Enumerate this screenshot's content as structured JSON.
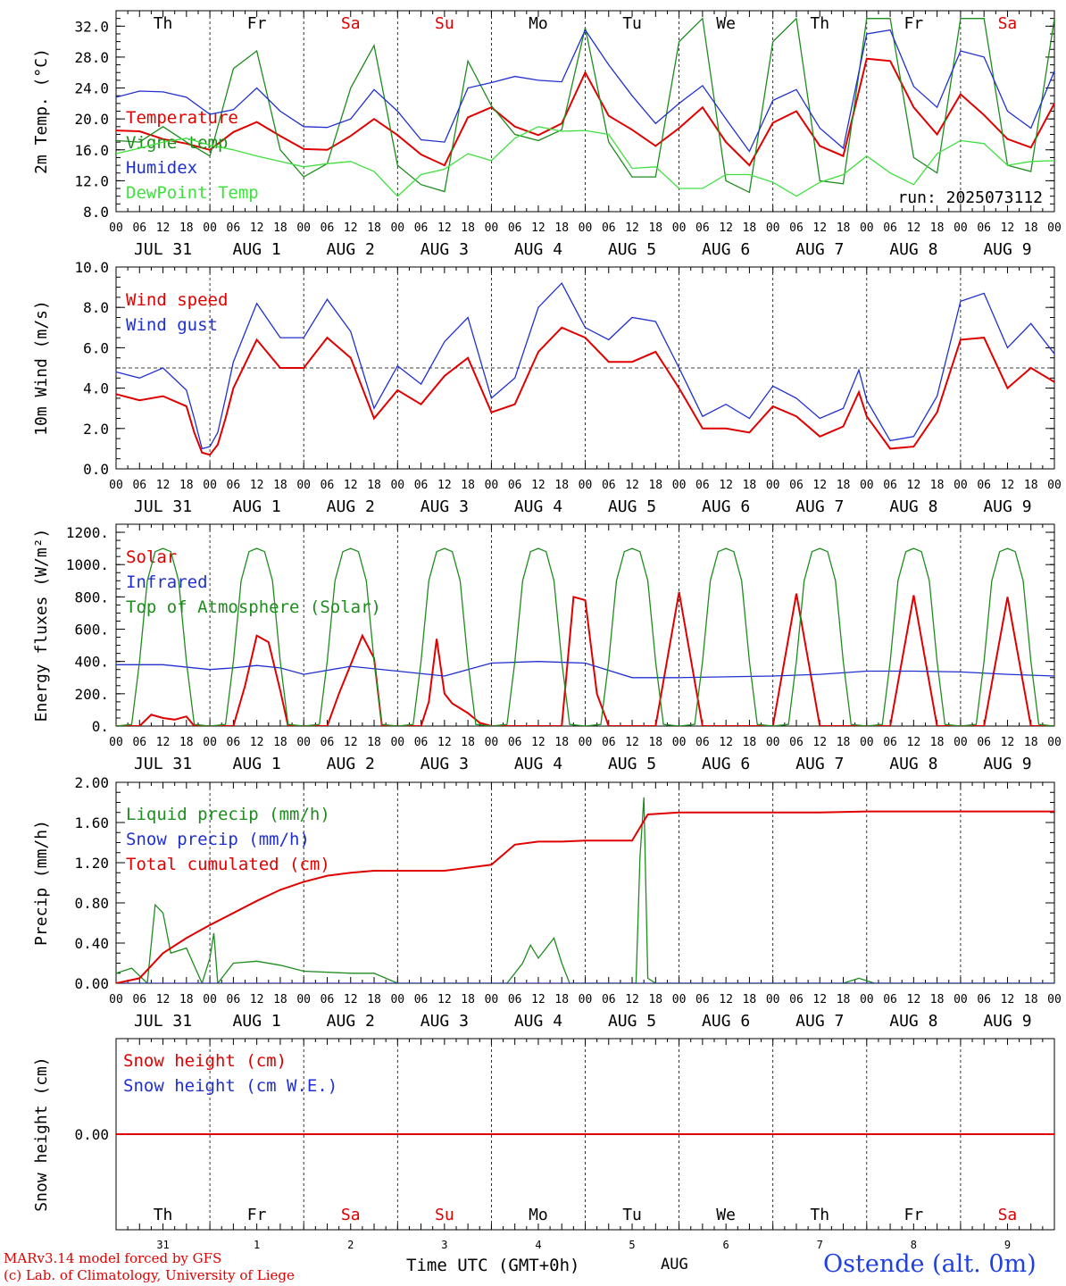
{
  "footer": {
    "credit_line1": "MARv3.14 model forced by GFS",
    "credit_line2": "(c) Lab. of Climatology, University of Liege",
    "x_title": "Time UTC (GMT+0h)",
    "month_label": "AUG",
    "station": "Ostende (alt. 0m)"
  },
  "colors": {
    "red": "#e00000",
    "green": "#1e8c1e",
    "blue": "#2030d0",
    "lightgreen": "#40e040",
    "weekend": "#e00000"
  },
  "days": {
    "weekdays": [
      "Th",
      "Fr",
      "Sa",
      "Su",
      "Mo",
      "Tu",
      "We",
      "Th",
      "Fr",
      "Sa"
    ],
    "weekend": [
      false,
      false,
      true,
      true,
      false,
      false,
      false,
      false,
      false,
      true
    ],
    "date_labels": [
      "JUL 31",
      "AUG  1",
      "AUG  2",
      "AUG  3",
      "AUG  4",
      "AUG  5",
      "AUG  6",
      "AUG  7",
      "AUG  8",
      "AUG  9"
    ],
    "day_numbers": [
      "31",
      "1",
      "2",
      "3",
      "4",
      "5",
      "6",
      "7",
      "8",
      "9"
    ],
    "hour_ticks": [
      "00",
      "06",
      "12",
      "18"
    ],
    "final_hour": "00"
  },
  "chart_data": [
    {
      "type": "line",
      "ylabel": "2m Temp. (°C)",
      "ylim": [
        8,
        34
      ],
      "yticks": [
        "8.0",
        "12.0",
        "16.0",
        "20.0",
        "24.0",
        "28.0",
        "32.0"
      ],
      "xlim_hours": [
        0,
        240
      ],
      "annotation": "run: 2025073112",
      "series": [
        {
          "name": "Temperature",
          "color": "red",
          "x": [
            0,
            6,
            12,
            18,
            24,
            30,
            36,
            42,
            48,
            54,
            60,
            66,
            72,
            78,
            84,
            90,
            96,
            102,
            108,
            114,
            120,
            126,
            132,
            138,
            144,
            150,
            156,
            162,
            168,
            174,
            180,
            186,
            192,
            198,
            204,
            210,
            216,
            222,
            228,
            234,
            240
          ],
          "y": [
            18.5,
            18.4,
            17.4,
            16.8,
            16.0,
            18.3,
            19.6,
            17.8,
            16.1,
            16.0,
            17.8,
            20.0,
            17.9,
            15.4,
            14.0,
            20.2,
            21.5,
            19.0,
            17.9,
            19.4,
            26.0,
            20.4,
            18.6,
            16.5,
            18.8,
            21.5,
            17.0,
            14.0,
            19.5,
            21.0,
            16.5,
            15.2,
            27.8,
            27.5,
            21.5,
            18.0,
            23.2,
            20.5,
            17.4,
            16.3,
            22.0
          ]
        },
        {
          "name": "Vigne temp",
          "color": "green",
          "x": [
            0,
            6,
            12,
            18,
            24,
            30,
            36,
            42,
            48,
            54,
            60,
            66,
            72,
            78,
            84,
            90,
            96,
            102,
            108,
            114,
            120,
            126,
            132,
            138,
            144,
            150,
            156,
            162,
            168,
            174,
            180,
            186,
            192,
            198,
            204,
            210,
            216,
            222,
            228,
            234,
            240
          ],
          "y": [
            17.2,
            17.0,
            19.0,
            17.0,
            15.2,
            26.5,
            28.8,
            16.0,
            12.5,
            14.2,
            24.0,
            29.5,
            14.0,
            11.5,
            10.6,
            27.5,
            21.7,
            18.0,
            17.2,
            18.6,
            31.8,
            17.0,
            12.5,
            12.5,
            30.0,
            33.0,
            12.0,
            10.5,
            30.0,
            33.0,
            12.0,
            11.6,
            33.0,
            33.0,
            15.0,
            13.0,
            33.0,
            33.0,
            14.0,
            13.2,
            33.0
          ]
        },
        {
          "name": "Humidex",
          "color": "blue",
          "x": [
            0,
            6,
            12,
            18,
            24,
            30,
            36,
            42,
            48,
            54,
            60,
            66,
            72,
            78,
            84,
            90,
            96,
            102,
            108,
            114,
            120,
            126,
            132,
            138,
            144,
            150,
            156,
            162,
            168,
            174,
            180,
            186,
            192,
            198,
            204,
            210,
            216,
            222,
            228,
            234,
            240
          ],
          "y": [
            22.8,
            23.6,
            23.5,
            22.8,
            20.6,
            21.2,
            24.0,
            21.0,
            19.0,
            18.9,
            20.0,
            23.8,
            21.0,
            17.3,
            17.0,
            24.0,
            24.7,
            25.5,
            25.0,
            24.8,
            31.5,
            27.0,
            23.0,
            19.4,
            22.0,
            24.3,
            20.0,
            15.8,
            22.4,
            23.8,
            18.8,
            16.2,
            31.0,
            31.5,
            24.2,
            21.5,
            28.8,
            28.0,
            21.0,
            18.8,
            26.2
          ]
        },
        {
          "name": "DewPoint Temp",
          "color": "lightgreen",
          "x": [
            0,
            6,
            12,
            18,
            24,
            30,
            36,
            42,
            48,
            54,
            60,
            66,
            72,
            78,
            84,
            90,
            96,
            102,
            108,
            114,
            120,
            126,
            132,
            138,
            144,
            150,
            156,
            162,
            168,
            174,
            180,
            186,
            192,
            198,
            204,
            210,
            216,
            222,
            228,
            234,
            240
          ],
          "y": [
            15.5,
            16.2,
            17.0,
            17.5,
            16.6,
            16.0,
            15.2,
            14.5,
            13.8,
            14.2,
            14.5,
            13.2,
            10.0,
            12.8,
            13.5,
            15.5,
            14.6,
            17.5,
            19.0,
            18.4,
            18.5,
            18.0,
            13.6,
            13.8,
            11.0,
            11.0,
            12.8,
            12.8,
            11.8,
            10.0,
            11.8,
            12.8,
            15.2,
            13.0,
            11.5,
            15.5,
            17.2,
            16.8,
            14.0,
            14.5,
            14.6
          ]
        }
      ]
    },
    {
      "type": "line",
      "ylabel": "10m Wind (m/s)",
      "ylim": [
        0,
        10
      ],
      "yticks": [
        "0.0",
        "2.0",
        "4.0",
        "6.0",
        "8.0",
        "10.0"
      ],
      "reference_line": 5.0,
      "series": [
        {
          "name": "Wind speed",
          "color": "red",
          "x": [
            0,
            6,
            12,
            18,
            20,
            22,
            24,
            26,
            28,
            30,
            36,
            42,
            48,
            54,
            60,
            66,
            72,
            78,
            84,
            90,
            96,
            102,
            108,
            114,
            120,
            126,
            132,
            138,
            144,
            150,
            156,
            162,
            168,
            174,
            180,
            186,
            190,
            192,
            198,
            204,
            210,
            216,
            222,
            228,
            234,
            240
          ],
          "y": [
            3.7,
            3.4,
            3.6,
            3.1,
            1.8,
            0.8,
            0.7,
            1.2,
            2.5,
            4.0,
            6.4,
            5.0,
            5.0,
            6.5,
            5.5,
            2.5,
            3.9,
            3.2,
            4.6,
            5.5,
            2.8,
            3.2,
            5.8,
            7.0,
            6.5,
            5.3,
            5.3,
            5.8,
            4.0,
            2.0,
            2.0,
            1.8,
            3.1,
            2.6,
            1.6,
            2.1,
            3.8,
            2.6,
            1.0,
            1.1,
            2.8,
            6.4,
            6.5,
            4.0,
            5.0,
            4.3
          ]
        },
        {
          "name": "Wind gust",
          "color": "blue",
          "x": [
            0,
            6,
            12,
            18,
            20,
            22,
            24,
            26,
            28,
            30,
            36,
            42,
            48,
            54,
            60,
            66,
            72,
            78,
            84,
            90,
            96,
            102,
            108,
            114,
            120,
            126,
            132,
            138,
            144,
            150,
            156,
            162,
            168,
            174,
            180,
            186,
            190,
            192,
            198,
            204,
            210,
            216,
            222,
            228,
            234,
            240
          ],
          "y": [
            4.8,
            4.5,
            5.0,
            3.9,
            2.5,
            1.0,
            1.1,
            1.8,
            3.5,
            5.3,
            8.2,
            6.5,
            6.5,
            8.4,
            6.8,
            3.0,
            5.1,
            4.2,
            6.3,
            7.5,
            3.5,
            4.5,
            8.0,
            9.2,
            7.0,
            6.4,
            7.5,
            7.3,
            5.0,
            2.6,
            3.2,
            2.5,
            4.1,
            3.5,
            2.5,
            3.0,
            4.9,
            3.4,
            1.4,
            1.6,
            3.6,
            8.3,
            8.7,
            6.0,
            7.2,
            5.7
          ]
        }
      ]
    },
    {
      "type": "line",
      "ylabel": "Energy fluxes (W/m²)",
      "ylim": [
        0,
        1250
      ],
      "yticks": [
        "0.",
        "200.",
        "400.",
        "600.",
        "800.",
        "1000.",
        "1200."
      ],
      "series": [
        {
          "name": "Solar",
          "color": "red",
          "x": [
            0,
            6,
            9,
            12,
            15,
            18,
            20,
            24,
            30,
            33,
            36,
            39,
            42,
            44,
            48,
            54,
            57,
            60,
            63,
            66,
            68,
            72,
            78,
            80,
            82,
            84,
            86,
            90,
            93,
            96,
            100,
            104,
            108,
            114,
            117,
            120,
            123,
            126,
            128,
            132,
            138,
            144,
            150,
            156,
            162,
            168,
            174,
            180,
            186,
            192,
            198,
            204,
            210,
            216,
            222,
            228,
            234,
            240
          ],
          "y": [
            0,
            0,
            70,
            50,
            40,
            60,
            0,
            0,
            0,
            250,
            560,
            520,
            220,
            0,
            0,
            0,
            200,
            380,
            560,
            420,
            0,
            0,
            0,
            150,
            540,
            200,
            140,
            80,
            20,
            0,
            0,
            0,
            0,
            0,
            800,
            780,
            200,
            0,
            0,
            0,
            0,
            830,
            0,
            0,
            0,
            0,
            820,
            0,
            0,
            0,
            0,
            810,
            0,
            0,
            0,
            800,
            0,
            0
          ]
        },
        {
          "name": "Infrared",
          "color": "blue",
          "x": [
            0,
            12,
            24,
            30,
            36,
            42,
            48,
            60,
            72,
            84,
            96,
            108,
            120,
            132,
            144,
            156,
            168,
            180,
            192,
            204,
            216,
            228,
            240
          ],
          "y": [
            380,
            380,
            350,
            360,
            375,
            360,
            320,
            370,
            340,
            310,
            390,
            400,
            390,
            300,
            300,
            305,
            310,
            320,
            340,
            340,
            335,
            320,
            310
          ]
        },
        {
          "name": "Top of Atmosphere (Solar)",
          "color": "green",
          "x": [
            0,
            4,
            6,
            8,
            10,
            12,
            14,
            16,
            18,
            20,
            24
          ],
          "y": [
            0,
            10,
            400,
            900,
            1080,
            1100,
            1080,
            900,
            400,
            10,
            0
          ],
          "periodic_hours": 24
        }
      ]
    },
    {
      "type": "line",
      "ylabel": "Precip (mm/h)",
      "ylim": [
        0,
        2.0
      ],
      "yticks": [
        "0.00",
        "0.40",
        "0.80",
        "1.20",
        "1.60",
        "2.00"
      ],
      "series": [
        {
          "name": "Liquid precip (mm/h)",
          "color": "green",
          "x": [
            0,
            4,
            8,
            10,
            12,
            14,
            18,
            22,
            24,
            25,
            26,
            30,
            36,
            42,
            48,
            60,
            66,
            72,
            84,
            88,
            96,
            100,
            104,
            106,
            108,
            112,
            114,
            116,
            120,
            118,
            122,
            133,
            134,
            135,
            136,
            138,
            140,
            144,
            180,
            186,
            190,
            194,
            240
          ],
          "y": [
            0.1,
            0.15,
            0.0,
            0.78,
            0.7,
            0.3,
            0.35,
            0.0,
            0.25,
            0.5,
            0.0,
            0.2,
            0.22,
            0.18,
            0.12,
            0.1,
            0.1,
            0.0,
            0.0,
            0.0,
            0.0,
            0.0,
            0.2,
            0.38,
            0.25,
            0.45,
            0.2,
            0.0,
            0.0,
            0.0,
            0.0,
            0.0,
            1.25,
            1.85,
            0.05,
            0.0,
            0.0,
            0.0,
            0.0,
            0.0,
            0.05,
            0.0,
            0.0
          ]
        },
        {
          "name": "Snow precip (mm/h)",
          "color": "blue",
          "x": [
            0,
            240
          ],
          "y": [
            0,
            0
          ]
        },
        {
          "name": "Total cumulated (cm)",
          "color": "red",
          "x": [
            0,
            6,
            12,
            18,
            24,
            30,
            36,
            42,
            48,
            54,
            60,
            66,
            72,
            84,
            96,
            102,
            108,
            114,
            120,
            132,
            134,
            136,
            144,
            180,
            192,
            240
          ],
          "y": [
            0.0,
            0.05,
            0.3,
            0.45,
            0.58,
            0.7,
            0.82,
            0.93,
            1.01,
            1.07,
            1.1,
            1.12,
            1.12,
            1.12,
            1.18,
            1.38,
            1.41,
            1.41,
            1.42,
            1.42,
            1.55,
            1.68,
            1.7,
            1.7,
            1.71,
            1.71
          ]
        }
      ]
    },
    {
      "type": "line",
      "ylabel": "Snow height (cm)",
      "ylim": [
        -1,
        1
      ],
      "yticks": [
        "0.00"
      ],
      "series": [
        {
          "name": "Snow height (cm)",
          "color": "red",
          "x": [
            0,
            240
          ],
          "y": [
            0,
            0
          ]
        },
        {
          "name": "Snow height (cm W.E.)",
          "color": "blue",
          "x": [],
          "y": []
        }
      ]
    }
  ]
}
